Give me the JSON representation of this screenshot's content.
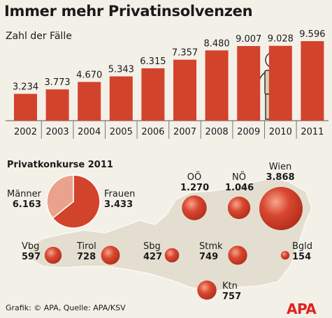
{
  "title": "Immer mehr Privatinsolvenzen",
  "subtitle": "Zahl der Fälle",
  "chart_data": [
    {
      "type": "bar",
      "title": "Immer mehr Privatinsolvenzen",
      "subtitle": "Zahl der Fälle",
      "categories": [
        "2002",
        "2003",
        "2004",
        "2005",
        "2006",
        "2007",
        "2008",
        "2009",
        "2010",
        "2011"
      ],
      "values": [
        3234,
        3773,
        4670,
        5343,
        6315,
        7357,
        8480,
        9007,
        9028,
        9596
      ],
      "value_labels": [
        "3.234",
        "3.773",
        "4.670",
        "5.343",
        "6.315",
        "7.357",
        "8.480",
        "9.007",
        "9.028",
        "9.596"
      ],
      "xlabel": "",
      "ylabel": "",
      "grid": false
    },
    {
      "type": "pie",
      "title": "Privatkonkurse 2011",
      "slices": [
        {
          "label": "Männer",
          "value": 6163,
          "value_label": "6.163",
          "color": "#d2432c"
        },
        {
          "label": "Frauen",
          "value": 3433,
          "value_label": "3.433",
          "color": "#eaa28c"
        }
      ]
    },
    {
      "type": "bubble-map",
      "title": "Privatkonkurse 2011",
      "regions": [
        {
          "label": "OÖ",
          "value": 1270,
          "value_label": "1.270"
        },
        {
          "label": "NÖ",
          "value": 1046,
          "value_label": "1.046"
        },
        {
          "label": "Wien",
          "value": 3868,
          "value_label": "3.868"
        },
        {
          "label": "Vbg",
          "value": 597,
          "value_label": "597"
        },
        {
          "label": "Tirol",
          "value": 728,
          "value_label": "728"
        },
        {
          "label": "Sbg",
          "value": 427,
          "value_label": "427"
        },
        {
          "label": "Stmk",
          "value": 749,
          "value_label": "749"
        },
        {
          "label": "Bgld",
          "value": 154,
          "value_label": "154"
        },
        {
          "label": "Ktn",
          "value": 757,
          "value_label": "757"
        }
      ]
    }
  ],
  "section2_title": "Privatkonkurse 2011",
  "source": "Grafik: © APA, Quelle: APA/KSV",
  "logo": "APA",
  "colors": {
    "bar": "#d2432c",
    "pie_men": "#d2432c",
    "pie_women": "#eaa28c",
    "map": "#e4ded1",
    "bubble": "#d2432c",
    "background": "#f3f0e8",
    "logo": "#e1211d"
  }
}
